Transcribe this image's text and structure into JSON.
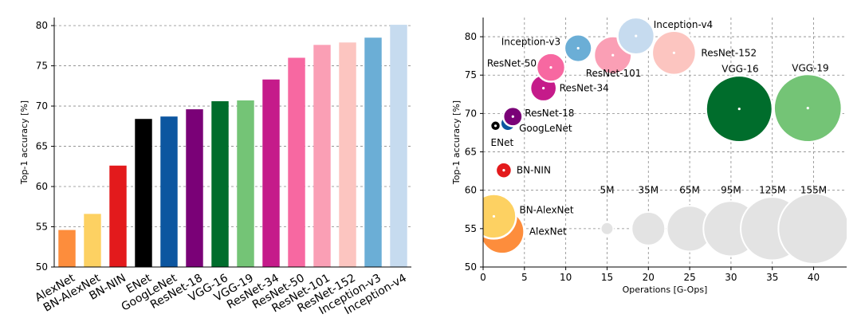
{
  "chart_data": [
    {
      "type": "bar",
      "ylabel": "Top-1 accuracy [%]",
      "ylim": [
        50,
        81
      ],
      "yticks": [
        50,
        55,
        60,
        65,
        70,
        75,
        80
      ],
      "grid": "horizontal dashed",
      "categories": [
        "AlexNet",
        "BN-AlexNet",
        "BN-NIN",
        "ENet",
        "GoogLeNet",
        "ResNet-18",
        "VGG-16",
        "VGG-19",
        "ResNet-34",
        "ResNet-50",
        "ResNet-101",
        "ResNet-152",
        "Inception-v3",
        "Inception-v4"
      ],
      "values": [
        54.6,
        56.6,
        62.6,
        68.4,
        68.7,
        69.6,
        70.6,
        70.7,
        73.3,
        76.0,
        77.6,
        77.9,
        78.5,
        80.1
      ],
      "colors": [
        "#fd8d3c",
        "#fdd162",
        "#e31a1c",
        "#000000",
        "#0c56a0",
        "#7a0177",
        "#006d2c",
        "#74c476",
        "#c51b8a",
        "#f768a1",
        "#fa9fb5",
        "#fcc5c0",
        "#6baed6",
        "#c6dbef"
      ]
    },
    {
      "type": "scatter",
      "xlabel": "Operations [G-Ops]",
      "ylabel": "Top-1 accuracy [%]",
      "xlim": [
        0,
        44
      ],
      "ylim": [
        50,
        82.5
      ],
      "xticks": [
        0,
        5,
        10,
        15,
        20,
        25,
        30,
        35,
        40
      ],
      "yticks": [
        50,
        55,
        60,
        65,
        70,
        75,
        80
      ],
      "grid": "both dashed",
      "size_encoding": "parameters (M)",
      "points": [
        {
          "label": "AlexNet",
          "ops": 2.3,
          "acc": 54.6,
          "params": 61,
          "color": "#fd8d3c"
        },
        {
          "label": "BN-AlexNet",
          "ops": 1.3,
          "acc": 56.6,
          "params": 62,
          "color": "#fdd162"
        },
        {
          "label": "BN-NIN",
          "ops": 2.5,
          "acc": 62.6,
          "params": 8,
          "color": "#e31a1c"
        },
        {
          "label": "ENet",
          "ops": 1.5,
          "acc": 68.4,
          "params": 0.4,
          "color": "#000000"
        },
        {
          "label": "GoogLeNet",
          "ops": 3.0,
          "acc": 68.7,
          "params": 7,
          "color": "#0c56a0"
        },
        {
          "label": "ResNet-18",
          "ops": 3.6,
          "acc": 69.6,
          "params": 11.7,
          "color": "#7a0177"
        },
        {
          "label": "VGG-16",
          "ops": 31.0,
          "acc": 70.6,
          "params": 138,
          "color": "#006d2c"
        },
        {
          "label": "VGG-19",
          "ops": 39.3,
          "acc": 70.7,
          "params": 144,
          "color": "#74c476"
        },
        {
          "label": "ResNet-34",
          "ops": 7.3,
          "acc": 73.3,
          "params": 21.8,
          "color": "#c51b8a"
        },
        {
          "label": "ResNet-50",
          "ops": 8.2,
          "acc": 76.0,
          "params": 25.6,
          "color": "#f768a1"
        },
        {
          "label": "ResNet-101",
          "ops": 15.7,
          "acc": 77.6,
          "params": 44.5,
          "color": "#fa9fb5"
        },
        {
          "label": "ResNet-152",
          "ops": 23.1,
          "acc": 77.9,
          "params": 60.2,
          "color": "#fcc5c0"
        },
        {
          "label": "Inception-v3",
          "ops": 11.5,
          "acc": 78.5,
          "params": 23.8,
          "color": "#6baed6"
        },
        {
          "label": "Inception-v4",
          "ops": 18.5,
          "acc": 80.1,
          "params": 42.7,
          "color": "#c6dbef"
        }
      ],
      "size_legend": [
        {
          "label": "5M",
          "ops": 15,
          "acc": 55,
          "params": 5
        },
        {
          "label": "35M",
          "ops": 20,
          "acc": 55,
          "params": 35
        },
        {
          "label": "65M",
          "ops": 25,
          "acc": 55,
          "params": 65
        },
        {
          "label": "95M",
          "ops": 30,
          "acc": 55,
          "params": 95
        },
        {
          "label": "125M",
          "ops": 35,
          "acc": 55,
          "params": 125
        },
        {
          "label": "155M",
          "ops": 40,
          "acc": 55,
          "params": 155
        }
      ],
      "size_legend_color": "#e3e3e3"
    }
  ]
}
